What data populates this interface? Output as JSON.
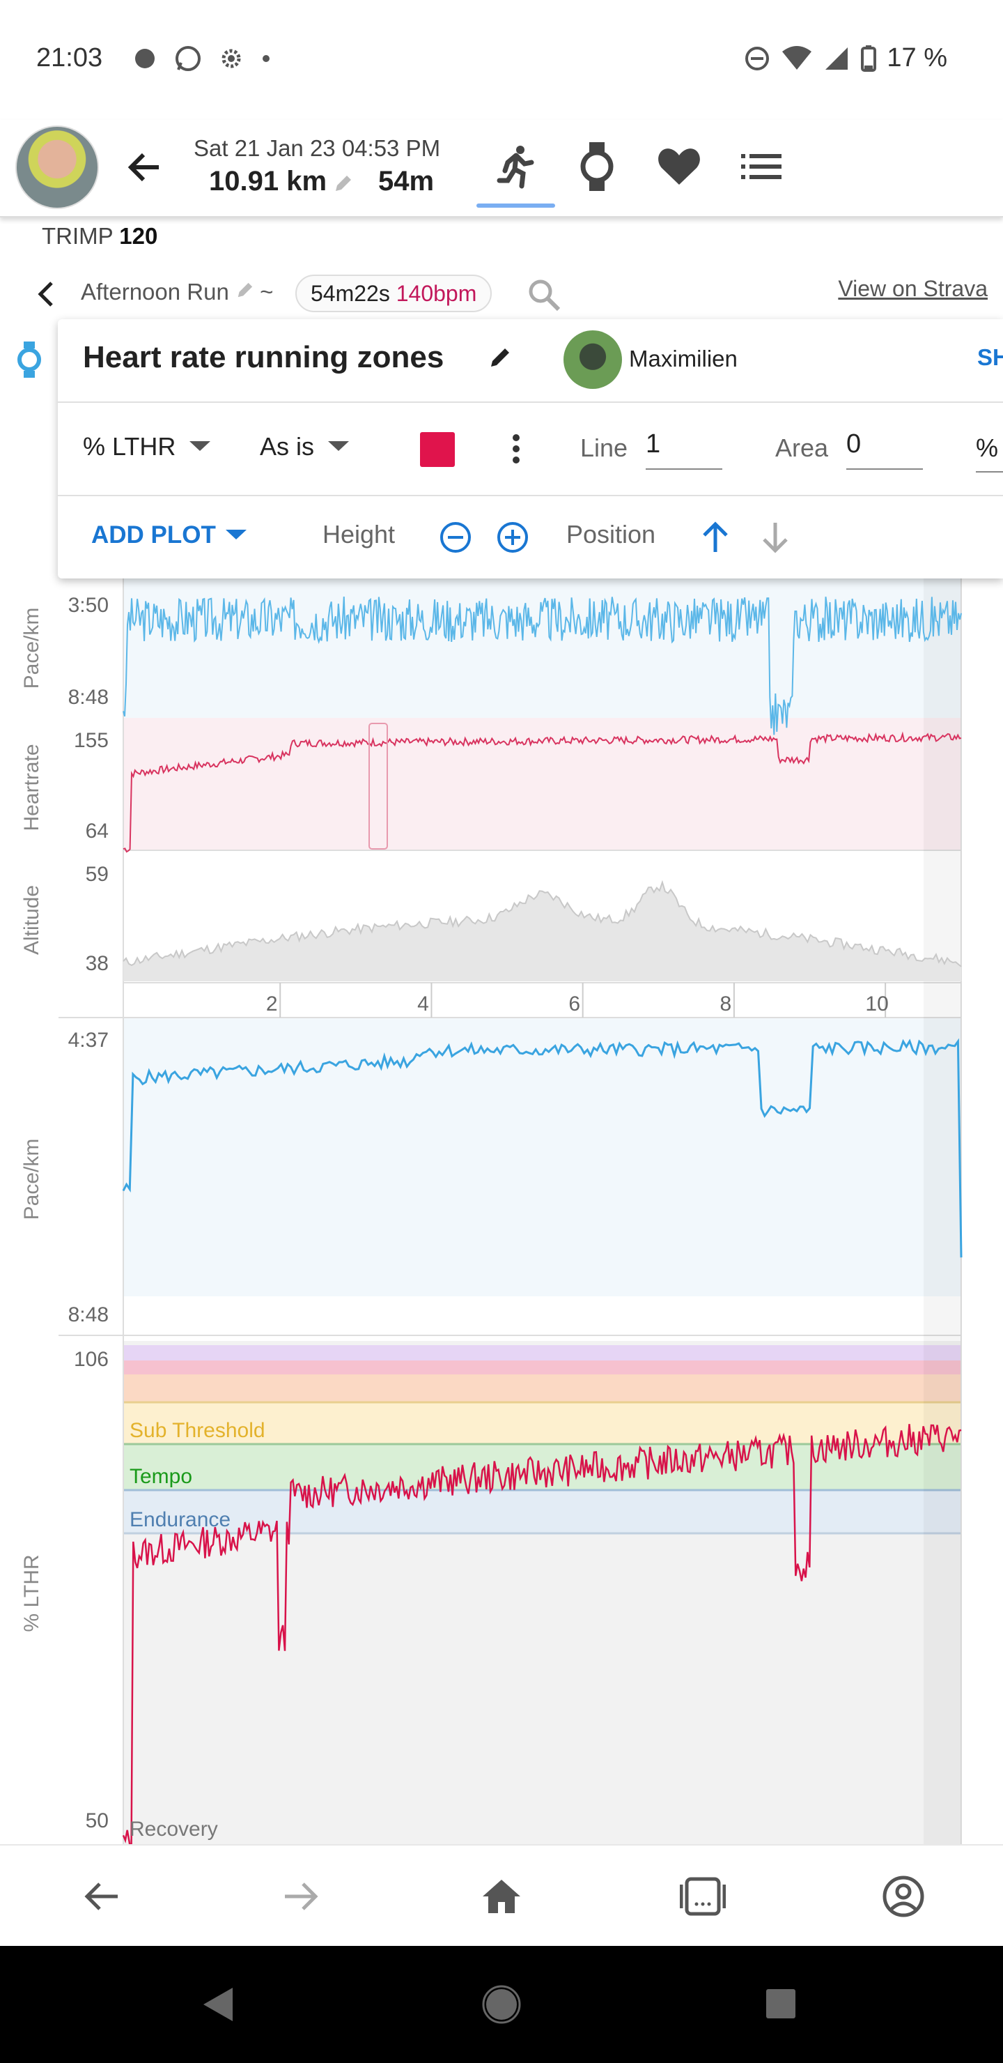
{
  "status": {
    "time": "21:03",
    "battery": "17 %"
  },
  "header": {
    "date": "Sat 21 Jan 23 04:53 PM",
    "distance": "10.91 km",
    "duration": "54m",
    "tabs": [
      "run-icon",
      "watch-icon",
      "heart-icon",
      "list-icon"
    ]
  },
  "trimp": {
    "label": "TRIMP",
    "value": "120"
  },
  "activity": {
    "name": "Afternoon Run",
    "separator": "~",
    "elapsed": "54m22s",
    "avg_hr": "140bpm",
    "strava_link": "View on Strava"
  },
  "panel": {
    "title": "Heart rate running zones",
    "user": "Maximilien",
    "share_label": "SH",
    "metric": "% LTHR",
    "transform": "As is",
    "color": "#e0144c",
    "line_label": "Line",
    "line_value": "1",
    "area_label": "Area",
    "area_value": "0",
    "unit_label": "%",
    "add_plot": "ADD PLOT",
    "height_label": "Height",
    "position_label": "Position"
  },
  "charts": {
    "pace_small": {
      "ylabel": "Pace/km",
      "top": "3:50",
      "bottom": "8:48"
    },
    "hr_small": {
      "ylabel": "Heartrate",
      "top": "155",
      "bottom": "64"
    },
    "alt_small": {
      "ylabel": "Altitude",
      "top": "59",
      "bottom": "38"
    },
    "x_ticks": [
      "2",
      "4",
      "6",
      "8",
      "10"
    ],
    "pace_big": {
      "ylabel": "Pace/km",
      "top": "4:37",
      "bottom": "8:48"
    },
    "zones": {
      "ylabel": "% LTHR",
      "top": "106",
      "bottom": "50",
      "zone_labels": [
        "Sub Threshold",
        "Tempo",
        "Endurance",
        "Recovery"
      ],
      "zone_colors": {
        "vo2": "#e6d5f5",
        "anaerobic": "#f6c1cf",
        "threshold": "#fbd9c4",
        "sub_threshold": "#fdf0cf",
        "tempo": "#d9efd6",
        "endurance": "#e3ecf5",
        "recovery": "#f2f2f2"
      }
    }
  },
  "chart_data": {
    "type": "line",
    "x_unit": "km",
    "x_ticks": [
      2,
      4,
      6,
      8,
      10
    ],
    "xlim": [
      0,
      10.91
    ],
    "series": [
      {
        "name": "Pace/km",
        "range": [
          "3:50",
          "8:48"
        ]
      },
      {
        "name": "Heartrate",
        "ylim": [
          64,
          155
        ]
      },
      {
        "name": "Altitude",
        "ylim": [
          38,
          59
        ]
      },
      {
        "name": "% LTHR",
        "ylim": [
          50,
          106
        ]
      }
    ]
  }
}
